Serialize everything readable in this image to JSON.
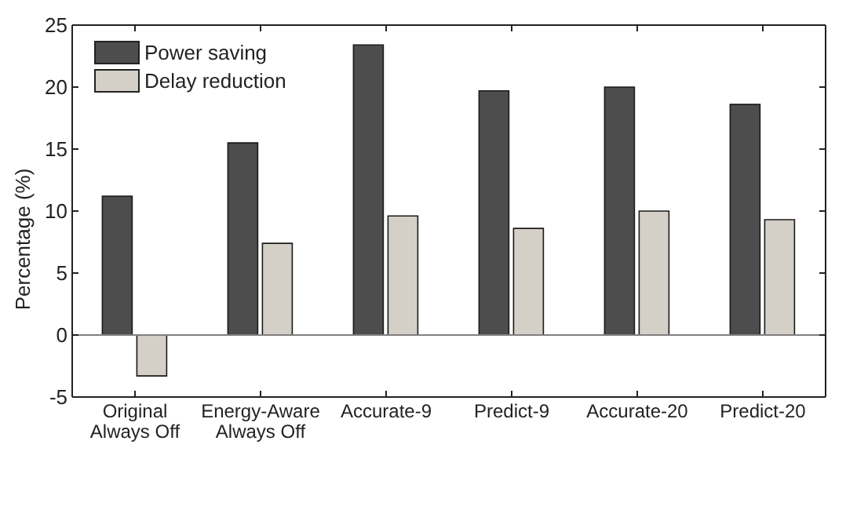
{
  "chart_data": {
    "type": "bar",
    "ylabel": "Percentage (%)",
    "categories": [
      "Original Always Off",
      "Energy-Aware Always Off",
      "Accurate-9",
      "Predict-9",
      "Accurate-20",
      "Predict-20"
    ],
    "series": [
      {
        "name": "Power saving",
        "color": "#4d4d4d",
        "values": [
          11.2,
          15.5,
          23.4,
          19.7,
          20.0,
          18.6
        ]
      },
      {
        "name": "Delay reduction",
        "color": "#d4d0c8",
        "values": [
          -3.3,
          7.4,
          9.6,
          8.6,
          10.0,
          9.3
        ]
      }
    ],
    "ylim": [
      -5,
      25
    ],
    "yticks": [
      -5,
      0,
      5,
      10,
      15,
      20,
      25
    ],
    "legend": "top left",
    "ref_lines": [
      {
        "axis": "y",
        "value": 0,
        "color": "#808080"
      }
    ]
  }
}
